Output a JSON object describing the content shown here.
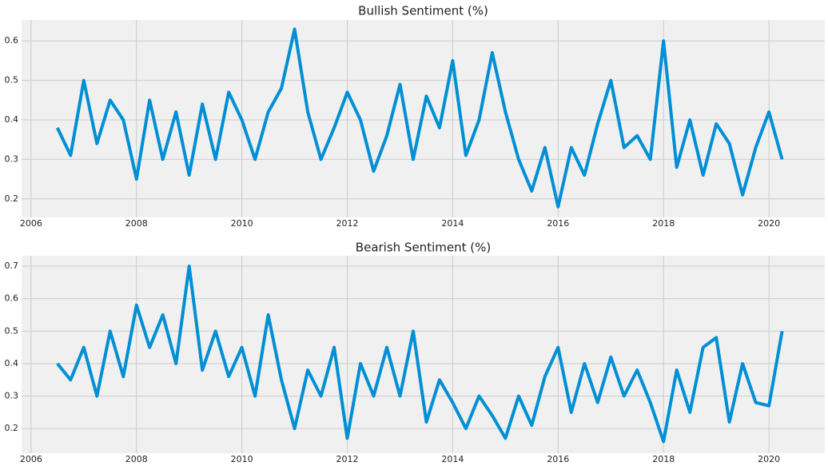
{
  "chart_data": [
    {
      "type": "line",
      "title": "Bullish Sentiment (%)",
      "color": "#008fd5",
      "grid": true,
      "x": [
        2006.5,
        2006.75,
        2007,
        2007.25,
        2007.5,
        2007.75,
        2008,
        2008.25,
        2008.5,
        2008.75,
        2009,
        2009.25,
        2009.5,
        2009.75,
        2010,
        2010.25,
        2010.5,
        2010.75,
        2011,
        2011.25,
        2011.5,
        2011.75,
        2012,
        2012.25,
        2012.5,
        2012.75,
        2013,
        2013.25,
        2013.5,
        2013.75,
        2014,
        2014.25,
        2014.5,
        2014.75,
        2015,
        2015.25,
        2015.5,
        2015.75,
        2016,
        2016.25,
        2016.5,
        2016.75,
        2017,
        2017.25,
        2017.5,
        2017.75,
        2018,
        2018.25,
        2018.5,
        2018.75,
        2019,
        2019.25,
        2019.5,
        2019.75,
        2020,
        2020.25
      ],
      "values": [
        0.38,
        0.31,
        0.5,
        0.34,
        0.45,
        0.4,
        0.25,
        0.45,
        0.3,
        0.42,
        0.26,
        0.44,
        0.3,
        0.47,
        0.4,
        0.3,
        0.42,
        0.48,
        0.63,
        0.42,
        0.3,
        0.38,
        0.47,
        0.4,
        0.27,
        0.36,
        0.49,
        0.3,
        0.46,
        0.38,
        0.55,
        0.31,
        0.4,
        0.57,
        0.42,
        0.3,
        0.22,
        0.33,
        0.18,
        0.33,
        0.26,
        0.39,
        0.5,
        0.33,
        0.36,
        0.3,
        0.6,
        0.28,
        0.4,
        0.26,
        0.39,
        0.34,
        0.21,
        0.33,
        0.42,
        0.3
      ],
      "xlim": [
        2005.82,
        2021.06
      ],
      "xticks": [
        2006,
        2008,
        2010,
        2012,
        2014,
        2016,
        2018,
        2020
      ],
      "ylim": [
        0.153,
        0.653
      ],
      "yticks": [
        0.2,
        0.3,
        0.4,
        0.5,
        0.6
      ]
    },
    {
      "type": "line",
      "title": "Bearish Sentiment (%)",
      "color": "#008fd5",
      "grid": true,
      "x": [
        2006.5,
        2006.75,
        2007,
        2007.25,
        2007.5,
        2007.75,
        2008,
        2008.25,
        2008.5,
        2008.75,
        2009,
        2009.25,
        2009.5,
        2009.75,
        2010,
        2010.25,
        2010.5,
        2010.75,
        2011,
        2011.25,
        2011.5,
        2011.75,
        2012,
        2012.25,
        2012.5,
        2012.75,
        2013,
        2013.25,
        2013.5,
        2013.75,
        2014,
        2014.25,
        2014.5,
        2014.75,
        2015,
        2015.25,
        2015.5,
        2015.75,
        2016,
        2016.25,
        2016.5,
        2016.75,
        2017,
        2017.25,
        2017.5,
        2017.75,
        2018,
        2018.25,
        2018.5,
        2018.75,
        2019,
        2019.25,
        2019.5,
        2019.75,
        2020,
        2020.25
      ],
      "values": [
        0.4,
        0.35,
        0.45,
        0.3,
        0.5,
        0.36,
        0.58,
        0.45,
        0.55,
        0.4,
        0.7,
        0.38,
        0.5,
        0.36,
        0.45,
        0.3,
        0.55,
        0.35,
        0.2,
        0.38,
        0.3,
        0.45,
        0.17,
        0.4,
        0.3,
        0.45,
        0.3,
        0.5,
        0.22,
        0.35,
        0.28,
        0.2,
        0.3,
        0.24,
        0.17,
        0.3,
        0.21,
        0.36,
        0.45,
        0.25,
        0.4,
        0.28,
        0.42,
        0.3,
        0.38,
        0.28,
        0.16,
        0.38,
        0.25,
        0.45,
        0.48,
        0.22,
        0.4,
        0.28,
        0.27,
        0.5
      ],
      "xlim": [
        2005.82,
        2021.06
      ],
      "xticks": [
        2006,
        2008,
        2010,
        2012,
        2014,
        2016,
        2018,
        2020
      ],
      "ylim": [
        0.124,
        0.732
      ],
      "yticks": [
        0.2,
        0.3,
        0.4,
        0.5,
        0.6,
        0.7
      ]
    }
  ]
}
